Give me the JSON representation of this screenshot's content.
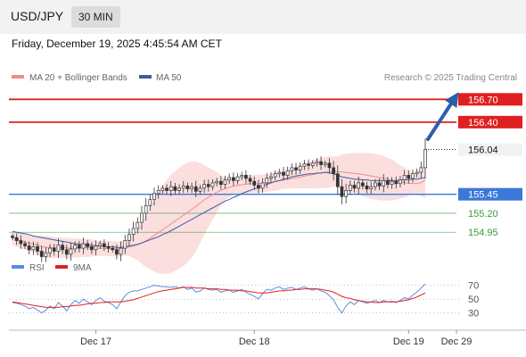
{
  "header": {
    "symbol": "USD/JPY",
    "timeframe": "30 MIN"
  },
  "timestamp": "Friday, December 19, 2025 4:45:54 AM CET",
  "copyright": "Research © 2025 Trading Central",
  "colors": {
    "ma20": "#f08c8c",
    "ma50": "#3a5f9e",
    "bands": "#fad4d4",
    "resistance": "#e02020",
    "current": "#222222",
    "pivot": "#3b78d8",
    "support": "#3a9a3a",
    "rsi": "#5b8ddb",
    "rsi_ma": "#e02020",
    "arrow": "#2f5ea8"
  },
  "chart_data": [
    {
      "type": "candlestick",
      "legend": [
        {
          "name": "MA 20 + Bollinger Bands",
          "color": "#f08c8c"
        },
        {
          "name": "MA 50",
          "color": "#3a5f9e"
        }
      ],
      "x_ticks": [
        "Dec 17",
        "Dec 18",
        "Dec 19",
        "Dec 29"
      ],
      "ylim": [
        154.6,
        156.88
      ],
      "levels": [
        {
          "value": 156.7,
          "label": "156.70",
          "kind": "resistance"
        },
        {
          "value": 156.4,
          "label": "156.40",
          "kind": "resistance"
        },
        {
          "value": 156.04,
          "label": "156.04",
          "kind": "current"
        },
        {
          "value": 155.45,
          "label": "155.45",
          "kind": "pivot"
        },
        {
          "value": 155.2,
          "label": "155.20",
          "kind": "support"
        },
        {
          "value": 154.95,
          "label": "154.95",
          "kind": "support"
        }
      ],
      "close": [
        154.88,
        154.84,
        154.8,
        154.77,
        154.72,
        154.76,
        154.7,
        154.63,
        154.68,
        154.74,
        154.7,
        154.78,
        154.72,
        154.66,
        154.73,
        154.78,
        154.74,
        154.8,
        154.76,
        154.72,
        154.77,
        154.8,
        154.76,
        154.74,
        154.72,
        154.66,
        154.74,
        154.84,
        154.92,
        155.0,
        155.08,
        155.2,
        155.3,
        155.38,
        155.46,
        155.5,
        155.53,
        155.5,
        155.55,
        155.5,
        155.53,
        155.56,
        155.52,
        155.55,
        155.49,
        155.53,
        155.58,
        155.55,
        155.6,
        155.62,
        155.58,
        155.64,
        155.67,
        155.63,
        155.68,
        155.7,
        155.66,
        155.62,
        155.57,
        155.53,
        155.6,
        155.66,
        155.68,
        155.72,
        155.74,
        155.7,
        155.76,
        155.8,
        155.77,
        155.82,
        155.85,
        155.83,
        155.86,
        155.88,
        155.84,
        155.86,
        155.8,
        155.72,
        155.55,
        155.42,
        155.5,
        155.57,
        155.53,
        155.6,
        155.56,
        155.52,
        155.55,
        155.6,
        155.56,
        155.63,
        155.58,
        155.62,
        155.59,
        155.64,
        155.7,
        155.66,
        155.72,
        155.74,
        155.8,
        156.04
      ],
      "ma50": [
        154.96,
        154.95,
        154.94,
        154.93,
        154.92,
        154.9,
        154.89,
        154.88,
        154.87,
        154.86,
        154.85,
        154.84,
        154.83,
        154.82,
        154.81,
        154.8,
        154.79,
        154.79,
        154.78,
        154.78,
        154.77,
        154.77,
        154.76,
        154.76,
        154.76,
        154.75,
        154.75,
        154.76,
        154.77,
        154.78,
        154.79,
        154.81,
        154.83,
        154.85,
        154.87,
        154.89,
        154.92,
        154.94,
        154.97,
        155.0,
        155.03,
        155.06,
        155.09,
        155.12,
        155.15,
        155.18,
        155.21,
        155.24,
        155.27,
        155.3,
        155.33,
        155.36,
        155.38,
        155.41,
        155.43,
        155.46,
        155.48,
        155.5,
        155.52,
        155.54,
        155.56,
        155.58,
        155.6,
        155.62,
        155.63,
        155.65,
        155.66,
        155.68,
        155.69,
        155.7,
        155.71,
        155.72,
        155.72,
        155.73,
        155.73,
        155.74,
        155.73,
        155.72,
        155.7,
        155.68,
        155.67,
        155.66,
        155.65,
        155.65,
        155.64,
        155.64,
        155.63,
        155.63,
        155.63,
        155.63,
        155.63,
        155.63,
        155.63,
        155.64,
        155.64,
        155.64,
        155.65,
        155.65,
        155.66,
        155.67
      ],
      "rsi_ylim": [
        10,
        80
      ],
      "rsi_ticks": [
        70,
        50,
        30
      ],
      "rsi": [
        45,
        44,
        42,
        40,
        36,
        38,
        34,
        30,
        34,
        40,
        36,
        45,
        40,
        33,
        42,
        48,
        44,
        50,
        46,
        42,
        48,
        52,
        47,
        45,
        42,
        36,
        46,
        55,
        60,
        62,
        62,
        64,
        66,
        68,
        70,
        69,
        68,
        68,
        67,
        68,
        66,
        68,
        64,
        66,
        60,
        62,
        66,
        64,
        63,
        64,
        60,
        62,
        63,
        60,
        62,
        64,
        60,
        57,
        54,
        50,
        58,
        64,
        63,
        66,
        68,
        64,
        66,
        67,
        64,
        66,
        68,
        65,
        63,
        65,
        62,
        60,
        55,
        49,
        38,
        30,
        40,
        46,
        42,
        48,
        46,
        44,
        46,
        48,
        45,
        48,
        46,
        47,
        45,
        48,
        52,
        50,
        56,
        60,
        66,
        72
      ],
      "rsi_ma": [
        46,
        45,
        44,
        43,
        42,
        41,
        40,
        39,
        38,
        38,
        38,
        38,
        39,
        39,
        40,
        41,
        41,
        42,
        43,
        44,
        44,
        45,
        45,
        46,
        46,
        46,
        46,
        47,
        48,
        49,
        51,
        53,
        55,
        57,
        59,
        61,
        62,
        63,
        64,
        65,
        66,
        67,
        67,
        67,
        66,
        66,
        66,
        65,
        65,
        65,
        64,
        64,
        63,
        63,
        63,
        62,
        62,
        61,
        60,
        59,
        59,
        59,
        60,
        61,
        62,
        62,
        63,
        63,
        64,
        64,
        65,
        65,
        65,
        65,
        64,
        63,
        62,
        60,
        57,
        54,
        52,
        51,
        49,
        48,
        47,
        46,
        46,
        45,
        45,
        46,
        46,
        46,
        46,
        47,
        48,
        49,
        51,
        53,
        56,
        59
      ]
    }
  ],
  "rsi_legend": [
    {
      "name": "RSI",
      "color": "#5b8ddb"
    },
    {
      "name": "9MA",
      "color": "#e02020"
    }
  ]
}
